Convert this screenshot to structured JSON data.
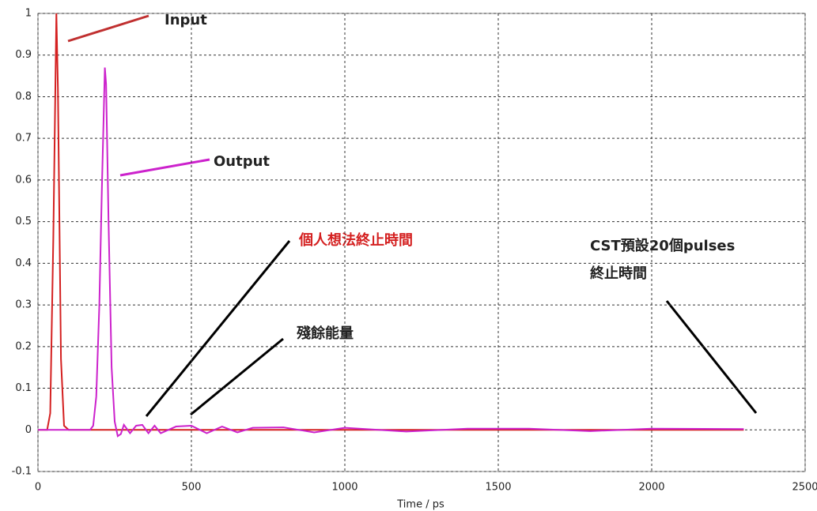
{
  "chart_data": {
    "type": "line",
    "x_label": "Time / ps",
    "x": [
      0,
      20,
      30,
      40,
      50,
      60,
      65,
      75,
      85,
      100,
      150,
      170,
      180,
      190,
      200,
      208,
      218,
      222,
      230,
      240,
      250,
      260,
      270,
      280,
      300,
      320,
      340,
      360,
      380,
      400,
      450,
      500,
      550,
      600,
      650,
      700,
      800,
      900,
      1000,
      1200,
      1400,
      1600,
      1800,
      2000,
      2300
    ],
    "series": [
      {
        "name": "Input",
        "color": "#d42020",
        "values": [
          0,
          0,
          0,
          0.04,
          0.46,
          1,
          0.82,
          0.17,
          0.01,
          0,
          0,
          0,
          0,
          0,
          0,
          0,
          0,
          0,
          0,
          0,
          0,
          0,
          0,
          0,
          0,
          0,
          0,
          0,
          0,
          0,
          0,
          0,
          0,
          0,
          0,
          0,
          0,
          0,
          0,
          0,
          0,
          0,
          0,
          0,
          0
        ]
      },
      {
        "name": "Output",
        "color": "#cc22cc",
        "values": [
          0,
          0,
          0,
          0,
          0,
          0,
          0,
          0,
          0,
          0,
          0,
          0,
          0.01,
          0.08,
          0.3,
          0.57,
          0.87,
          0.83,
          0.5,
          0.15,
          0.02,
          -0.015,
          -0.01,
          0.012,
          -0.008,
          0.01,
          0.012,
          -0.008,
          0.01,
          -0.008,
          0.008,
          0.01,
          -0.008,
          0.008,
          -0.006,
          0.005,
          0.006,
          -0.006,
          0.005,
          -0.004,
          0.003,
          0.003,
          -0.003,
          0.003,
          0.002
        ]
      }
    ],
    "xlim": [
      0,
      2500
    ],
    "xticks": [
      0,
      500,
      1000,
      1500,
      2000,
      2500
    ],
    "ylim": [
      -0.1,
      1
    ],
    "yticks": [
      -0.1,
      0,
      0.1,
      0.2,
      0.3,
      0.4,
      0.5,
      0.6,
      0.7,
      0.8,
      0.9,
      1
    ],
    "grid": true,
    "annotations": [
      "個人想法終止時間",
      "殘餘能量",
      "CST預設20個pulses",
      "終止時間"
    ]
  }
}
